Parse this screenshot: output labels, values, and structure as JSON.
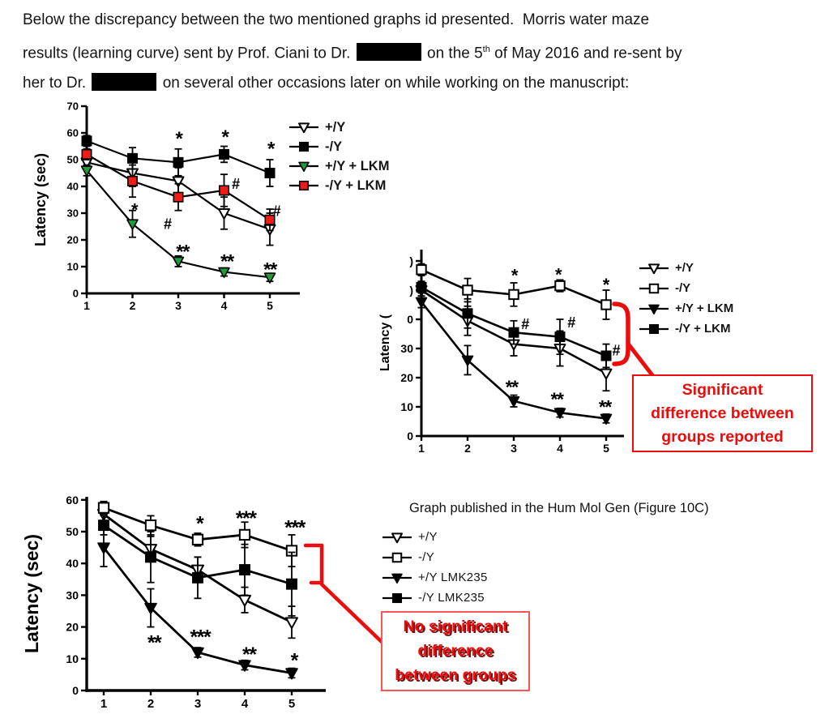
{
  "colors": {
    "callout_red": "#ee0b0b",
    "green_series": "#1f9b3a",
    "red_series": "#ee1c16",
    "ink": "#000000"
  },
  "paragraph": {
    "lines": [
      {
        "segments": [
          {
            "t": "Below the discrepancy between the two mentioned graphs id presented.  Morris water maze"
          }
        ]
      },
      {
        "segments": [
          {
            "t": "results (learning curve) sent by Prof. Ciani to Dr. "
          },
          {
            "redacted": true
          },
          {
            "t": " on the 5"
          },
          {
            "sup": "th"
          },
          {
            "t": " of May 2016 and re-sent by"
          }
        ]
      },
      {
        "segments": [
          {
            "t": "her to Dr. "
          },
          {
            "redacted": true
          },
          {
            "t": " on several other occasions later on while working on the manuscript:"
          }
        ]
      }
    ]
  },
  "callouts": {
    "significant": {
      "lines": [
        "Significant",
        "difference between",
        "groups reported"
      ]
    },
    "not_significant": {
      "lines": [
        "No significant",
        "difference",
        "between groups"
      ]
    }
  },
  "chart_data": [
    {
      "id": "chart-sent",
      "type": "line",
      "title": "",
      "xlabel": "",
      "ylabel": "Latency (sec)",
      "ylim": [
        0,
        70
      ],
      "xlim": [
        1,
        5
      ],
      "legend_position": "right",
      "x": [
        1,
        2,
        3,
        4,
        5
      ],
      "xticklabels": [
        "1",
        "2",
        "3",
        "4",
        "5"
      ],
      "yticks": [
        {
          "v": 0,
          "l": "0"
        },
        {
          "v": 10,
          "l": "10"
        },
        {
          "v": 20,
          "l": "20"
        },
        {
          "v": 30,
          "l": "30"
        },
        {
          "v": 40,
          "l": "40"
        },
        {
          "v": 50,
          "l": "50"
        },
        {
          "v": 60,
          "l": "60"
        },
        {
          "v": 70,
          "l": "70"
        }
      ],
      "series": [
        {
          "name": "+/Y",
          "marker": "triangle-down",
          "fill": "#ffffff",
          "values": [
            49,
            45,
            42,
            30,
            24
          ],
          "errors": [
            2,
            5,
            5,
            6,
            6
          ]
        },
        {
          "name": "-/Y",
          "marker": "square",
          "fill": "#000000",
          "values": [
            57,
            50.5,
            49,
            52,
            45
          ],
          "errors": [
            2,
            4,
            5,
            3,
            5
          ]
        },
        {
          "name": "+/Y + LKM",
          "marker": "triangle-down",
          "fill": "#1f9b3a",
          "values": [
            46,
            26,
            12,
            8,
            6
          ],
          "errors": [
            2,
            5,
            2,
            1.5,
            1.5
          ]
        },
        {
          "name": "-/Y + LKM",
          "marker": "square",
          "fill": "#ee1c16",
          "values": [
            52,
            42,
            36,
            38.5,
            27.5
          ],
          "errors": [
            2,
            6,
            5,
            6,
            4
          ]
        }
      ],
      "annotations": [
        {
          "t": "*",
          "x": 3.02,
          "y": 58.7,
          "fs": 24
        },
        {
          "t": "*",
          "x": 4.03,
          "y": 59.3,
          "fs": 24
        },
        {
          "t": "*",
          "x": 5.03,
          "y": 55.0,
          "fs": 24
        },
        {
          "t": "*",
          "x": 2.05,
          "y": 32.0,
          "fs": 22
        },
        {
          "t": "#",
          "x": 2.77,
          "y": 26.0,
          "fs": 18
        },
        {
          "t": "**",
          "x": 3.09,
          "y": 16.5,
          "fs": 24
        },
        {
          "t": "**",
          "x": 4.06,
          "y": 12.8,
          "fs": 24
        },
        {
          "t": "**",
          "x": 5.0,
          "y": 9.8,
          "fs": 24
        },
        {
          "t": "#",
          "x": 4.26,
          "y": 41.0,
          "fs": 18
        },
        {
          "t": "#",
          "x": 5.15,
          "y": 30.9,
          "fs": 18
        }
      ]
    },
    {
      "id": "chart-resent",
      "type": "line",
      "title": "",
      "xlabel": "",
      "ylabel": "Latency (",
      "ylim": [
        0,
        60
      ],
      "xlim": [
        1,
        5
      ],
      "legend_position": "right",
      "x": [
        1,
        2,
        3,
        4,
        5
      ],
      "xticklabels": [
        "1",
        "2",
        "3",
        "4",
        "5"
      ],
      "yticks": [
        {
          "v": 0,
          "l": "0"
        },
        {
          "v": 10,
          "l": "10"
        },
        {
          "v": 20,
          "l": "20"
        },
        {
          "v": 30,
          "l": "30"
        },
        {
          "v": 40,
          "l": "0"
        },
        {
          "v": 50,
          "l": ")"
        },
        {
          "v": 60,
          "l": ")"
        }
      ],
      "series": [
        {
          "name": "+/Y",
          "marker": "triangle-down",
          "fill": "#ffffff",
          "values": [
            50,
            39.5,
            31.5,
            30,
            21.5
          ],
          "errors": [
            2,
            5,
            4,
            6,
            6
          ]
        },
        {
          "name": "-/Y",
          "marker": "square",
          "fill": "#ffffff",
          "values": [
            57,
            50,
            48.5,
            51.5,
            45
          ],
          "errors": [
            2,
            4,
            4,
            2,
            5
          ]
        },
        {
          "name": "+/Y + LKM",
          "marker": "triangle-down",
          "fill": "#000000",
          "values": [
            46,
            26,
            12,
            8,
            6
          ],
          "errors": [
            2,
            5,
            2,
            1.5,
            1.5
          ]
        },
        {
          "name": "-/Y + LKM",
          "marker": "square",
          "fill": "#000000",
          "values": [
            51,
            42,
            35.5,
            34,
            27.5
          ],
          "errors": [
            2,
            5,
            4,
            6,
            4
          ]
        }
      ],
      "annotations": [
        {
          "t": "*",
          "x": 3.02,
          "y": 55.6,
          "fs": 22
        },
        {
          "t": "*",
          "x": 3.97,
          "y": 56.0,
          "fs": 22
        },
        {
          "t": "*",
          "x": 5.0,
          "y": 52.5,
          "fs": 22
        },
        {
          "t": "#",
          "x": 3.25,
          "y": 38.5,
          "fs": 18
        },
        {
          "t": "#",
          "x": 4.25,
          "y": 39.0,
          "fs": 18
        },
        {
          "t": "#",
          "x": 5.22,
          "y": 29.5,
          "fs": 18
        },
        {
          "t": "**",
          "x": 2.95,
          "y": 17.5,
          "fs": 23
        },
        {
          "t": "**",
          "x": 3.93,
          "y": 13.3,
          "fs": 23
        },
        {
          "t": "**",
          "x": 4.97,
          "y": 10.6,
          "fs": 23
        }
      ]
    },
    {
      "id": "chart-published",
      "type": "line",
      "title": "Graph published in the Hum Mol Gen (Figure 10C)",
      "xlabel": "",
      "ylabel": "Latency (sec)",
      "ylim": [
        0,
        60
      ],
      "xlim": [
        1,
        5
      ],
      "legend_position": "right",
      "x": [
        1,
        2,
        3,
        4,
        5
      ],
      "xticklabels": [
        "1",
        "2",
        "3",
        "4",
        "5"
      ],
      "yticks": [
        {
          "v": 0,
          "l": "0"
        },
        {
          "v": 10,
          "l": "10"
        },
        {
          "v": 20,
          "l": "20"
        },
        {
          "v": 30,
          "l": "30"
        },
        {
          "v": 40,
          "l": "40"
        },
        {
          "v": 50,
          "l": "50"
        },
        {
          "v": 60,
          "l": "60"
        }
      ],
      "series": [
        {
          "name": "+/Y",
          "marker": "triangle-down",
          "fill": "#ffffff",
          "values": [
            55.5,
            44.5,
            38,
            28.5,
            21.5
          ],
          "errors": [
            2,
            4,
            4,
            4,
            5
          ]
        },
        {
          "name": "-/Y",
          "marker": "square",
          "fill": "#ffffff",
          "values": [
            57.5,
            52,
            47.5,
            49,
            44
          ],
          "errors": [
            2,
            3,
            2,
            4,
            5
          ]
        },
        {
          "name": "+/Y LMK235",
          "marker": "triangle-down",
          "fill": "#000000",
          "values": [
            45,
            26,
            12,
            8,
            5.5
          ],
          "errors": [
            6,
            6,
            1.5,
            1.5,
            1.5
          ]
        },
        {
          "name": "-/Y LMK235",
          "marker": "square",
          "fill": "#000000",
          "values": [
            52,
            42,
            35.5,
            38,
            33.5
          ],
          "errors": [
            3,
            8,
            6.5,
            8,
            10
          ]
        }
      ],
      "annotations": [
        {
          "t": "*",
          "x": 3.05,
          "y": 53.3,
          "fs": 25
        },
        {
          "t": "***",
          "x": 4.02,
          "y": 54.9,
          "fs": 25
        },
        {
          "t": "***",
          "x": 5.06,
          "y": 52.0,
          "fs": 25
        },
        {
          "t": "**",
          "x": 2.07,
          "y": 15.8,
          "fs": 25
        },
        {
          "t": "***",
          "x": 3.05,
          "y": 17.6,
          "fs": 25
        },
        {
          "t": "**",
          "x": 4.09,
          "y": 12.0,
          "fs": 25
        },
        {
          "t": "*",
          "x": 5.06,
          "y": 10.2,
          "fs": 25
        }
      ]
    }
  ]
}
